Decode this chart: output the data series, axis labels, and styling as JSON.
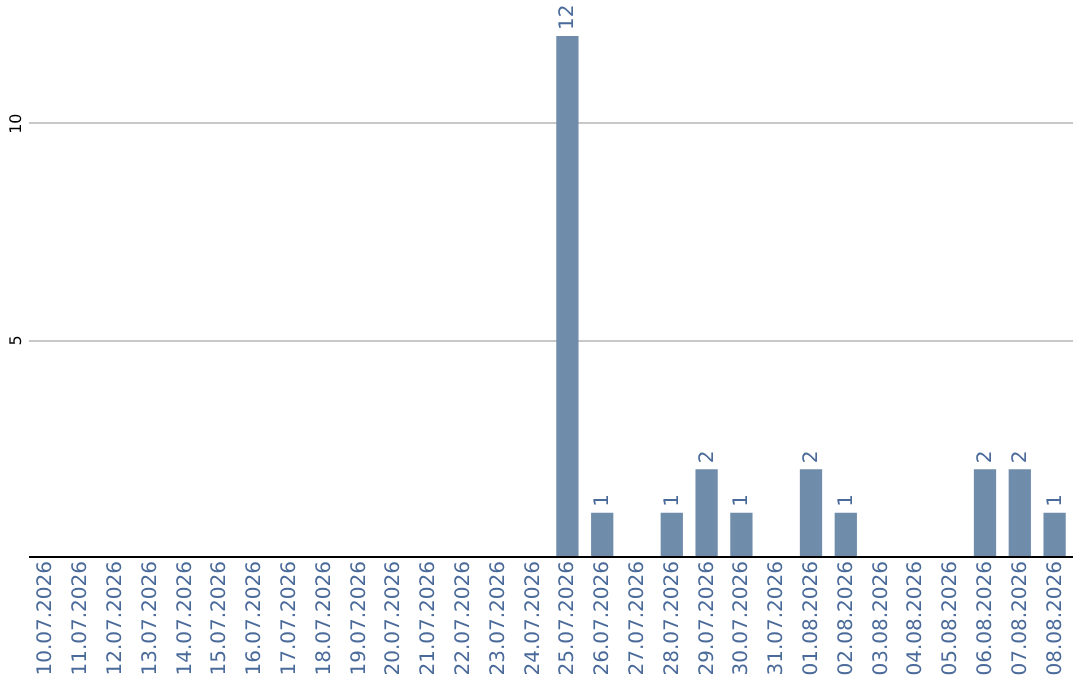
{
  "chart_data": {
    "type": "bar",
    "categories": [
      "10.07.2026",
      "11.07.2026",
      "12.07.2026",
      "13.07.2026",
      "14.07.2026",
      "15.07.2026",
      "16.07.2026",
      "17.07.2026",
      "18.07.2026",
      "19.07.2026",
      "20.07.2026",
      "21.07.2026",
      "22.07.2026",
      "23.07.2026",
      "24.07.2026",
      "25.07.2026",
      "26.07.2026",
      "27.07.2026",
      "28.07.2026",
      "29.07.2026",
      "30.07.2026",
      "31.07.2026",
      "01.08.2026",
      "02.08.2026",
      "03.08.2026",
      "04.08.2026",
      "05.08.2026",
      "06.08.2026",
      "07.08.2026",
      "08.08.2026"
    ],
    "values": [
      0,
      0,
      0,
      0,
      0,
      0,
      0,
      0,
      0,
      0,
      0,
      0,
      0,
      0,
      0,
      12,
      1,
      0,
      1,
      2,
      1,
      0,
      2,
      1,
      0,
      0,
      0,
      2,
      2,
      1
    ],
    "value_labels": [
      null,
      null,
      null,
      null,
      null,
      null,
      null,
      null,
      null,
      null,
      null,
      null,
      null,
      null,
      null,
      "12",
      "1",
      null,
      "1",
      "2",
      "1",
      null,
      "2",
      "1",
      null,
      null,
      null,
      "2",
      "2",
      "1"
    ],
    "color": "#6f8dab",
    "ylim": [
      0,
      12
    ],
    "yticks": [
      5,
      10
    ],
    "grid": "y"
  }
}
